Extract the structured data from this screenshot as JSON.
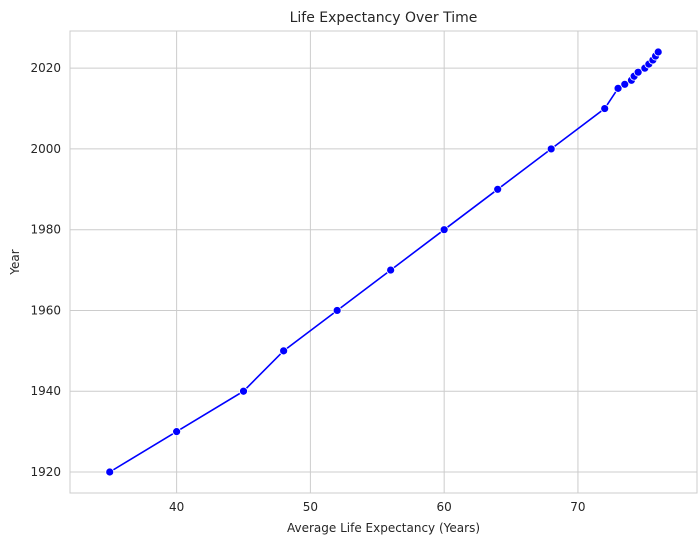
{
  "chart_data": {
    "type": "line",
    "title": "Life Expectancy Over Time",
    "xlabel": "Average Life Expectancy (Years)",
    "ylabel": "Year",
    "xlim": [
      32.03,
      78.9
    ],
    "ylim": [
      1914.8,
      2029.2
    ],
    "xticks": [
      40,
      50,
      60,
      70
    ],
    "yticks": [
      1920,
      1940,
      1960,
      1980,
      2000,
      2020
    ],
    "grid": true,
    "line_color": "#0000ff",
    "marker_color": "#0000ff",
    "series": [
      {
        "points": [
          {
            "x": 35.0,
            "y": 1920
          },
          {
            "x": 40.0,
            "y": 1930
          },
          {
            "x": 45.0,
            "y": 1940
          },
          {
            "x": 48.0,
            "y": 1950
          },
          {
            "x": 52.0,
            "y": 1960
          },
          {
            "x": 56.0,
            "y": 1970
          },
          {
            "x": 60.0,
            "y": 1980
          },
          {
            "x": 64.0,
            "y": 1990
          },
          {
            "x": 68.0,
            "y": 2000
          },
          {
            "x": 72.0,
            "y": 2010
          },
          {
            "x": 73.0,
            "y": 2015
          },
          {
            "x": 73.5,
            "y": 2016
          },
          {
            "x": 74.0,
            "y": 2017
          },
          {
            "x": 74.2,
            "y": 2018
          },
          {
            "x": 74.5,
            "y": 2019
          },
          {
            "x": 75.0,
            "y": 2020
          },
          {
            "x": 75.3,
            "y": 2021
          },
          {
            "x": 75.6,
            "y": 2022
          },
          {
            "x": 75.8,
            "y": 2023
          },
          {
            "x": 76.0,
            "y": 2024
          }
        ]
      }
    ]
  }
}
